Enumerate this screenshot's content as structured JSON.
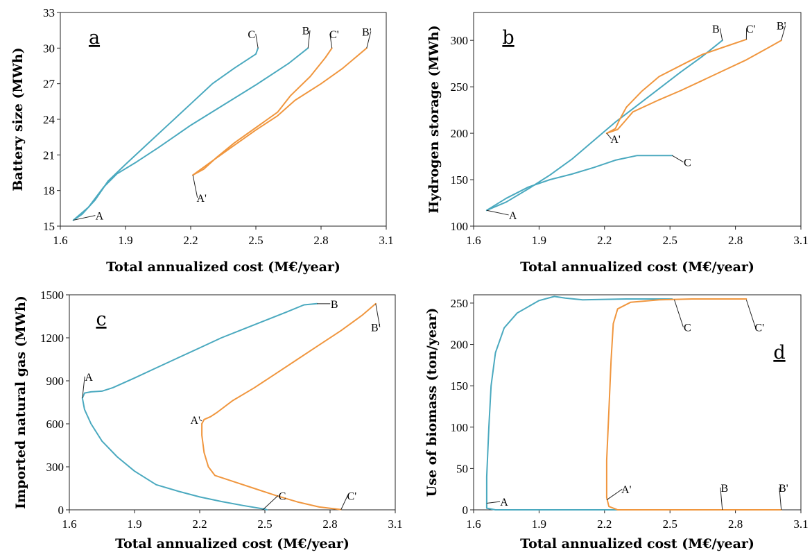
{
  "colors": {
    "blue": "#4aa9bf",
    "orange": "#f0963e"
  },
  "chart_data": [
    {
      "type": "line",
      "panel": "a",
      "xlabel": "Total annualized cost (M€/year)",
      "ylabel": "Battery size (MWh)",
      "xlim": [
        1.6,
        3.1
      ],
      "ylim": [
        15,
        33
      ],
      "xticks": [
        "1.6",
        "1.9",
        "2.2",
        "2.5",
        "2.8",
        "3.1"
      ],
      "yticks": [
        "15",
        "18",
        "21",
        "24",
        "27",
        "30",
        "33"
      ],
      "series": [
        {
          "color": "blue",
          "points": [
            [
              1.66,
              15.5
            ],
            [
              1.7,
              16.0
            ],
            [
              1.76,
              17.2
            ],
            [
              1.82,
              18.8
            ],
            [
              1.9,
              20.2
            ],
            [
              2.0,
              21.9
            ],
            [
              2.1,
              23.6
            ],
            [
              2.2,
              25.3
            ],
            [
              2.3,
              27.0
            ],
            [
              2.4,
              28.3
            ],
            [
              2.5,
              29.5
            ],
            [
              2.51,
              30.0
            ]
          ]
        },
        {
          "color": "blue",
          "points": [
            [
              1.66,
              15.5
            ],
            [
              1.73,
              16.6
            ],
            [
              1.8,
              18.3
            ],
            [
              1.86,
              19.4
            ],
            [
              1.95,
              20.4
            ],
            [
              2.05,
              21.6
            ],
            [
              2.2,
              23.5
            ],
            [
              2.35,
              25.2
            ],
            [
              2.5,
              26.9
            ],
            [
              2.65,
              28.7
            ],
            [
              2.74,
              30.0
            ]
          ]
        },
        {
          "color": "orange",
          "points": [
            [
              2.21,
              19.3
            ],
            [
              2.26,
              19.8
            ],
            [
              2.32,
              20.8
            ],
            [
              2.4,
              22.0
            ],
            [
              2.5,
              23.3
            ],
            [
              2.6,
              24.6
            ],
            [
              2.66,
              26.0
            ],
            [
              2.75,
              27.6
            ],
            [
              2.82,
              29.2
            ],
            [
              2.85,
              30.0
            ]
          ]
        },
        {
          "color": "orange",
          "points": [
            [
              2.21,
              19.3
            ],
            [
              2.3,
              20.5
            ],
            [
              2.4,
              21.8
            ],
            [
              2.5,
              23.1
            ],
            [
              2.6,
              24.3
            ],
            [
              2.68,
              25.6
            ],
            [
              2.8,
              27.0
            ],
            [
              2.9,
              28.3
            ],
            [
              3.01,
              30.0
            ]
          ]
        }
      ],
      "annotations": [
        {
          "label": "A",
          "at": [
            1.66,
            15.5
          ],
          "text": [
            1.78,
            15.9
          ]
        },
        {
          "label": "C",
          "at": [
            2.51,
            30.0
          ],
          "text": [
            2.48,
            31.2
          ]
        },
        {
          "label": "B",
          "at": [
            2.74,
            30.0
          ],
          "text": [
            2.73,
            31.5
          ]
        },
        {
          "label": "C'",
          "at": [
            2.85,
            30.0
          ],
          "text": [
            2.86,
            31.2
          ]
        },
        {
          "label": "B'",
          "at": [
            3.01,
            30.0
          ],
          "text": [
            3.01,
            31.4
          ]
        },
        {
          "label": "A'",
          "at": [
            2.21,
            19.3
          ],
          "text": [
            2.25,
            17.4
          ]
        }
      ]
    },
    {
      "type": "line",
      "panel": "b",
      "xlabel": "Total annualized cost (M€/year)",
      "ylabel": "Hydrogen storage (MWh)",
      "xlim": [
        1.6,
        3.1
      ],
      "ylim": [
        100,
        330
      ],
      "xticks": [
        "1.6",
        "1.9",
        "2.2",
        "2.5",
        "2.8",
        "3.1"
      ],
      "yticks": [
        "100",
        "150",
        "200",
        "250",
        "300"
      ],
      "series": [
        {
          "color": "blue",
          "points": [
            [
              1.66,
              117
            ],
            [
              1.75,
              126
            ],
            [
              1.85,
              140
            ],
            [
              1.95,
              155
            ],
            [
              2.05,
              172
            ],
            [
              2.15,
              192
            ],
            [
              2.25,
              212
            ],
            [
              2.35,
              230
            ],
            [
              2.45,
              248
            ],
            [
              2.55,
              266
            ],
            [
              2.65,
              283
            ],
            [
              2.74,
              300
            ]
          ]
        },
        {
          "color": "blue",
          "points": [
            [
              1.66,
              117
            ],
            [
              1.75,
              130
            ],
            [
              1.85,
              142
            ],
            [
              1.95,
              150
            ],
            [
              2.05,
              156
            ],
            [
              2.15,
              163
            ],
            [
              2.25,
              171
            ],
            [
              2.35,
              176
            ],
            [
              2.45,
              176
            ],
            [
              2.51,
              176
            ]
          ]
        },
        {
          "color": "orange",
          "points": [
            [
              2.21,
              200
            ],
            [
              2.25,
              205
            ],
            [
              2.27,
              215
            ],
            [
              2.3,
              228
            ],
            [
              2.37,
              245
            ],
            [
              2.45,
              261
            ],
            [
              2.55,
              273
            ],
            [
              2.65,
              285
            ],
            [
              2.75,
              293
            ],
            [
              2.85,
              301
            ]
          ]
        },
        {
          "color": "orange",
          "points": [
            [
              2.21,
              200
            ],
            [
              2.26,
              204
            ],
            [
              2.29,
              212
            ],
            [
              2.33,
              223
            ],
            [
              2.45,
              236
            ],
            [
              2.55,
              246
            ],
            [
              2.65,
              257
            ],
            [
              2.75,
              268
            ],
            [
              2.85,
              279
            ],
            [
              2.95,
              292
            ],
            [
              3.01,
              300
            ]
          ]
        }
      ],
      "annotations": [
        {
          "label": "A",
          "at": [
            1.66,
            117
          ],
          "text": [
            1.78,
            112
          ]
        },
        {
          "label": "B",
          "at": [
            2.74,
            300
          ],
          "text": [
            2.71,
            313
          ]
        },
        {
          "label": "C'",
          "at": [
            2.85,
            301
          ],
          "text": [
            2.87,
            313
          ]
        },
        {
          "label": "B'",
          "at": [
            3.01,
            300
          ],
          "text": [
            3.01,
            316
          ]
        },
        {
          "label": "A'",
          "at": [
            2.21,
            200
          ],
          "text": [
            2.25,
            194
          ]
        },
        {
          "label": "C",
          "at": [
            2.51,
            176
          ],
          "text": [
            2.58,
            169
          ]
        }
      ]
    },
    {
      "type": "line",
      "panel": "c",
      "xlabel": "Total annualized cost (M€/year)",
      "ylabel": "Imported natural gas (MWh)",
      "xlim": [
        1.6,
        3.1
      ],
      "ylim": [
        0,
        1500
      ],
      "xticks": [
        "1.6",
        "1.9",
        "2.2",
        "2.5",
        "2.8",
        "3.1"
      ],
      "yticks": [
        "0",
        "300",
        "600",
        "900",
        "1200",
        "1500"
      ],
      "series": [
        {
          "color": "blue",
          "points": [
            [
              1.66,
              780
            ],
            [
              1.67,
              815
            ],
            [
              1.7,
              823
            ],
            [
              1.75,
              828
            ],
            [
              1.8,
              852
            ],
            [
              1.9,
              920
            ],
            [
              2.0,
              990
            ],
            [
              2.1,
              1060
            ],
            [
              2.2,
              1130
            ],
            [
              2.3,
              1200
            ],
            [
              2.4,
              1260
            ],
            [
              2.5,
              1320
            ],
            [
              2.6,
              1380
            ],
            [
              2.68,
              1430
            ],
            [
              2.74,
              1438
            ]
          ]
        },
        {
          "color": "blue",
          "points": [
            [
              1.66,
              780
            ],
            [
              1.67,
              700
            ],
            [
              1.7,
              600
            ],
            [
              1.75,
              480
            ],
            [
              1.82,
              370
            ],
            [
              1.9,
              270
            ],
            [
              2.0,
              175
            ],
            [
              2.1,
              130
            ],
            [
              2.2,
              90
            ],
            [
              2.3,
              58
            ],
            [
              2.4,
              30
            ],
            [
              2.5,
              5
            ],
            [
              2.51,
              0
            ]
          ]
        },
        {
          "color": "orange",
          "points": [
            [
              2.21,
              600
            ],
            [
              2.22,
              630
            ],
            [
              2.25,
              650
            ],
            [
              2.28,
              680
            ],
            [
              2.35,
              760
            ],
            [
              2.45,
              850
            ],
            [
              2.55,
              950
            ],
            [
              2.65,
              1050
            ],
            [
              2.75,
              1150
            ],
            [
              2.85,
              1250
            ],
            [
              2.95,
              1360
            ],
            [
              3.01,
              1438
            ]
          ]
        },
        {
          "color": "orange",
          "points": [
            [
              2.21,
              600
            ],
            [
              2.21,
              520
            ],
            [
              2.22,
              400
            ],
            [
              2.24,
              300
            ],
            [
              2.27,
              240
            ],
            [
              2.35,
              200
            ],
            [
              2.45,
              150
            ],
            [
              2.55,
              100
            ],
            [
              2.65,
              55
            ],
            [
              2.75,
              20
            ],
            [
              2.85,
              2
            ]
          ]
        }
      ],
      "annotations": [
        {
          "label": "A",
          "at": [
            1.66,
            780
          ],
          "text": [
            1.69,
            930
          ]
        },
        {
          "label": "B",
          "at": [
            2.74,
            1438
          ],
          "text": [
            2.82,
            1438
          ]
        },
        {
          "label": "B'",
          "at": [
            3.01,
            1438
          ],
          "text": [
            3.01,
            1275
          ]
        },
        {
          "label": "A'",
          "at": [
            2.21,
            620
          ],
          "text": [
            2.18,
            630
          ]
        },
        {
          "label": "C",
          "at": [
            2.49,
            0
          ],
          "text": [
            2.58,
            100
          ]
        },
        {
          "label": "C'",
          "at": [
            2.85,
            0
          ],
          "text": [
            2.9,
            100
          ]
        }
      ]
    },
    {
      "type": "line",
      "panel": "d",
      "xlabel": "Total annualized cost (M€/year)",
      "ylabel": "Use of biomass (ton/year)",
      "xlim": [
        1.6,
        3.1
      ],
      "ylim": [
        0,
        260
      ],
      "xticks": [
        "1.6",
        "1.9",
        "2.2",
        "2.5",
        "2.8",
        "3.1"
      ],
      "yticks": [
        "0",
        "50",
        "100",
        "150",
        "200",
        "250"
      ],
      "series": [
        {
          "color": "blue",
          "points": [
            [
              1.66,
              10
            ],
            [
              1.66,
              40
            ],
            [
              1.67,
              100
            ],
            [
              1.68,
              150
            ],
            [
              1.7,
              190
            ],
            [
              1.74,
              220
            ],
            [
              1.8,
              238
            ],
            [
              1.9,
              253
            ],
            [
              1.97,
              258
            ],
            [
              2.02,
              256
            ],
            [
              2.1,
              254
            ],
            [
              2.3,
              255
            ],
            [
              2.51,
              255
            ]
          ]
        },
        {
          "color": "blue",
          "points": [
            [
              1.66,
              10
            ],
            [
              1.66,
              2
            ],
            [
              1.7,
              0
            ],
            [
              2.0,
              0
            ],
            [
              2.4,
              0
            ],
            [
              2.74,
              0
            ],
            [
              3.01,
              0
            ]
          ]
        },
        {
          "color": "orange",
          "points": [
            [
              2.21,
              15
            ],
            [
              2.21,
              60
            ],
            [
              2.22,
              120
            ],
            [
              2.23,
              180
            ],
            [
              2.24,
              225
            ],
            [
              2.26,
              243
            ],
            [
              2.32,
              251
            ],
            [
              2.45,
              254
            ],
            [
              2.6,
              255
            ],
            [
              2.85,
              255
            ]
          ]
        },
        {
          "color": "orange",
          "points": [
            [
              2.21,
              15
            ],
            [
              2.22,
              4
            ],
            [
              2.26,
              0
            ],
            [
              2.4,
              0
            ],
            [
              2.74,
              0
            ],
            [
              3.01,
              0
            ]
          ]
        }
      ],
      "annotations": [
        {
          "label": "A",
          "at": [
            1.66,
            8
          ],
          "text": [
            1.74,
            10
          ]
        },
        {
          "label": "A'",
          "at": [
            2.21,
            12
          ],
          "text": [
            2.3,
            25
          ]
        },
        {
          "label": "C",
          "at": [
            2.52,
            254
          ],
          "text": [
            2.58,
            221
          ]
        },
        {
          "label": "C'",
          "at": [
            2.85,
            254
          ],
          "text": [
            2.91,
            221
          ]
        },
        {
          "label": "B",
          "at": [
            2.74,
            0
          ],
          "text": [
            2.75,
            27
          ]
        },
        {
          "label": "B'",
          "at": [
            3.01,
            0
          ],
          "text": [
            3.02,
            27
          ]
        }
      ]
    }
  ]
}
